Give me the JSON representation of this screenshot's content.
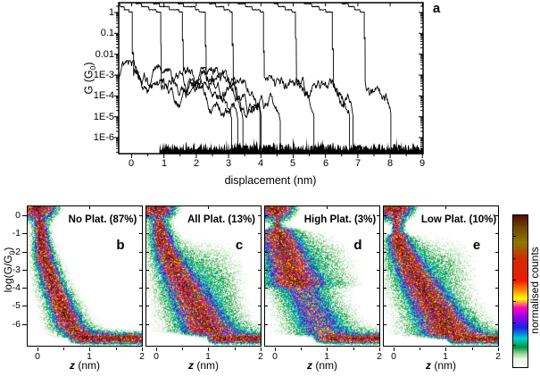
{
  "panel_a": {
    "letter": "a",
    "xlabel": "displacement (nm)",
    "ylabel_pre": "G (G",
    "ylabel_sub": "0",
    "ylabel_post": ")"
  },
  "bottom": {
    "ylabel_pre": "log(G/G",
    "ylabel_sub": "0",
    "ylabel_post": ")",
    "xlabel_italic": "z",
    "xlabel_rest": " (nm)"
  },
  "colorbar": {
    "label": "normalised counts",
    "stops": [
      [
        0.0,
        "#ffffff"
      ],
      [
        0.055,
        "#ebf5eb"
      ],
      [
        0.09,
        "#96d296"
      ],
      [
        0.13,
        "#00963c"
      ],
      [
        0.19,
        "#00cdcd"
      ],
      [
        0.26,
        "#1923e6"
      ],
      [
        0.33,
        "#9600eb"
      ],
      [
        0.39,
        "#ff00be"
      ],
      [
        0.45,
        "#ffff00"
      ],
      [
        0.5,
        "#ff9600"
      ],
      [
        0.57,
        "#f01900"
      ],
      [
        0.72,
        "#cd2d00"
      ],
      [
        0.82,
        "#8c7800"
      ],
      [
        0.91,
        "#734b05"
      ],
      [
        1.0,
        "#521000"
      ]
    ]
  },
  "chart_data": [
    {
      "panel": "a",
      "type": "line",
      "x_axis": {
        "label": "displacement (nm)",
        "ticks": [
          0,
          1,
          2,
          3,
          4,
          5,
          6,
          7,
          8,
          9
        ],
        "range": [
          -0.4,
          9.02
        ]
      },
      "y_axis": {
        "label": "G (G0)",
        "scale": "log",
        "tick_labels": [
          "1",
          "0.1",
          "0.01",
          "1E-3",
          "1E-4",
          "1E-5",
          "1E-6"
        ],
        "tick_logs": [
          0,
          -1,
          -2,
          -3,
          -4,
          -5,
          -6
        ],
        "range_log": [
          -6.77,
          0.47
        ]
      },
      "description": "Nine successive break-junction conductance-displacement traces; each plateaus near 1 G0, drops abruptly at its break point, decays noisily through 1E-4..1E-5 G0, then joins the instrument noise floor near 1E-6.5 G0.",
      "trace_breaks_nm": [
        0.02,
        0.9,
        1.57,
        2.28,
        3.11,
        4.08,
        5.07,
        6.21,
        7.2
      ],
      "entering_tail_trace": true,
      "noise_floor_start_nm": 0.86,
      "noise_floor_log": -6.6,
      "line_color": "#000000",
      "seed": 1234
    },
    {
      "panel": "b",
      "type": "heatmap",
      "title": "No Plat. (87%)",
      "percent": 87,
      "letter": "b",
      "x_axis": {
        "label": "z (nm)",
        "ticks": [
          0,
          1,
          2
        ],
        "range": [
          -0.2,
          2.02
        ]
      },
      "y_axis": {
        "label": "log(G/G0)",
        "ticks": [
          0,
          -1,
          -2,
          -3,
          -4,
          -5,
          -6
        ],
        "range": [
          -7.25,
          0.55
        ]
      },
      "seed": 101,
      "features": [
        {
          "kind": "blob",
          "cx": 0.0,
          "cy": 0.5,
          "sx": 0.2,
          "sy": 0.4,
          "amp": 1.1
        },
        {
          "kind": "vstripe",
          "cx": 0.05,
          "sx": 0.03,
          "y0": 0.3,
          "y1": -2.2,
          "amp": 0.75,
          "famp": 0.1
        },
        {
          "kind": "band",
          "pts": [
            [
              0.07,
              -0.5
            ],
            [
              0.1,
              -1.5
            ],
            [
              0.16,
              -2.5
            ],
            [
              0.3,
              -3.8
            ],
            [
              0.5,
              -5.2
            ],
            [
              0.65,
              -6.2
            ],
            [
              0.85,
              -6.6
            ]
          ],
          "w0": 0.05,
          "w1": 0.17,
          "amp": 0.78,
          "famp": 0.12
        },
        {
          "kind": "band",
          "pts": [
            [
              0.22,
              -3.0
            ],
            [
              0.32,
              -3.9
            ],
            [
              0.44,
              -4.9
            ],
            [
              0.54,
              -5.6
            ]
          ],
          "w0": 0.05,
          "w1": 0.08,
          "amp": 0.38,
          "famp": 0
        },
        {
          "kind": "floor",
          "cy": -6.8,
          "sy": 0.14,
          "x0": 0.58,
          "soft": 0.3,
          "amp": 1.05,
          "famp": 0.1
        }
      ]
    },
    {
      "panel": "c",
      "type": "heatmap",
      "title": "All Plat. (13%)",
      "percent": 13,
      "letter": "c",
      "x_axis": {
        "label": "z (nm)",
        "ticks": [
          0,
          1,
          2
        ],
        "range": [
          -0.2,
          2.02
        ]
      },
      "y_axis": {
        "label": "log(G/G0)",
        "ticks": [
          0,
          -1,
          -2,
          -3,
          -4,
          -5,
          -6
        ],
        "range": [
          -7.25,
          0.55
        ]
      },
      "seed": 202,
      "features": [
        {
          "kind": "blob",
          "cx": 0.0,
          "cy": 0.5,
          "sx": 0.2,
          "sy": 0.4,
          "amp": 1.1
        },
        {
          "kind": "vstripe",
          "cx": 0.05,
          "sx": 0.03,
          "y0": 0.3,
          "y1": -1.6,
          "amp": 0.75,
          "famp": 0.1
        },
        {
          "kind": "band",
          "pts": [
            [
              0.08,
              -0.6
            ],
            [
              0.15,
              -1.6
            ],
            [
              0.3,
              -2.6
            ],
            [
              0.5,
              -3.7
            ],
            [
              0.7,
              -4.7
            ],
            [
              0.9,
              -5.7
            ],
            [
              1.05,
              -6.4
            ]
          ],
          "w0": 0.07,
          "w1": 0.27,
          "amp": 0.74,
          "famp": 0.13
        },
        {
          "kind": "blob",
          "cx": 1.05,
          "cy": -3.3,
          "sx": 0.5,
          "sy": 1.5,
          "amp": 0.1
        },
        {
          "kind": "blob",
          "cx": 0.93,
          "cy": -6.2,
          "sx": 0.17,
          "sy": 0.3,
          "amp": 0.3
        },
        {
          "kind": "floor",
          "cy": -6.8,
          "sy": 0.13,
          "x0": 0.98,
          "soft": 0.15,
          "amp": 1.0,
          "famp": 0.1
        }
      ]
    },
    {
      "panel": "d",
      "type": "heatmap",
      "title": "High Plat. (3%)",
      "percent": 3,
      "letter": "d",
      "x_axis": {
        "label": "z (nm)",
        "ticks": [
          0,
          1,
          2
        ],
        "range": [
          -0.2,
          2.02
        ]
      },
      "y_axis": {
        "label": "log(G/G0)",
        "ticks": [
          0,
          -1,
          -2,
          -3,
          -4,
          -5,
          -6
        ],
        "range": [
          -7.25,
          0.55
        ]
      },
      "seed": 303,
      "features": [
        {
          "kind": "blob",
          "cx": 0.0,
          "cy": 0.5,
          "sx": 0.2,
          "sy": 0.4,
          "amp": 1.1
        },
        {
          "kind": "vstripe",
          "cx": 0.05,
          "sx": 0.03,
          "y0": 0.3,
          "y1": -0.9,
          "amp": 0.75,
          "famp": 0.08
        },
        {
          "kind": "band",
          "pts": [
            [
              0.07,
              -1.0
            ],
            [
              0.2,
              -1.9
            ],
            [
              0.3,
              -2.8
            ],
            [
              0.43,
              -3.8
            ]
          ],
          "w0": 0.18,
          "w1": 0.25,
          "amp": 0.76,
          "famp": 0.1
        },
        {
          "kind": "band",
          "pts": [
            [
              0.42,
              -3.6
            ],
            [
              0.6,
              -4.6
            ],
            [
              0.8,
              -5.6
            ],
            [
              0.95,
              -6.5
            ]
          ],
          "w0": 0.22,
          "w1": 0.3,
          "amp": 0.3,
          "famp": 0.09
        },
        {
          "kind": "blob",
          "cx": 0.9,
          "cy": -2.6,
          "sx": 0.5,
          "sy": 1.2,
          "amp": 0.07
        },
        {
          "kind": "floor",
          "cy": -6.8,
          "sy": 0.13,
          "x0": 0.72,
          "soft": 0.35,
          "amp": 0.95,
          "famp": 0.1
        }
      ]
    },
    {
      "panel": "e",
      "type": "heatmap",
      "title": "Low Plat. (10%)",
      "percent": 10,
      "letter": "e",
      "x_axis": {
        "label": "z (nm)",
        "ticks": [
          0,
          1,
          2
        ],
        "range": [
          -0.2,
          2.02
        ]
      },
      "y_axis": {
        "label": "log(G/G0)",
        "ticks": [
          0,
          -1,
          -2,
          -3,
          -4,
          -5,
          -6
        ],
        "range": [
          -7.25,
          0.55
        ]
      },
      "seed": 404,
      "features": [
        {
          "kind": "blob",
          "cx": 0.0,
          "cy": 0.5,
          "sx": 0.2,
          "sy": 0.4,
          "amp": 1.1
        },
        {
          "kind": "vstripe",
          "cx": 0.05,
          "sx": 0.03,
          "y0": 0.3,
          "y1": -1.7,
          "amp": 0.75,
          "famp": 0.1
        },
        {
          "kind": "vstripe",
          "cx": 0.13,
          "sx": 0.05,
          "y0": -0.3,
          "y1": -2.4,
          "amp": 0.3,
          "famp": 0
        },
        {
          "kind": "band",
          "pts": [
            [
              0.1,
              -1.3
            ],
            [
              0.22,
              -2.2
            ],
            [
              0.4,
              -3.2
            ],
            [
              0.6,
              -4.2
            ],
            [
              0.82,
              -5.2
            ],
            [
              1.0,
              -6.1
            ],
            [
              1.12,
              -6.55
            ]
          ],
          "w0": 0.1,
          "w1": 0.3,
          "amp": 0.78,
          "famp": 0.13
        },
        {
          "kind": "blob",
          "cx": 0.95,
          "cy": -2.7,
          "sx": 0.55,
          "sy": 1.3,
          "amp": 0.08
        },
        {
          "kind": "blob",
          "cx": 1.0,
          "cy": -6.25,
          "sx": 0.15,
          "sy": 0.3,
          "amp": 0.32
        },
        {
          "kind": "floor",
          "cy": -6.8,
          "sy": 0.13,
          "x0": 1.02,
          "soft": 0.15,
          "amp": 1.0,
          "famp": 0.1
        }
      ]
    }
  ]
}
